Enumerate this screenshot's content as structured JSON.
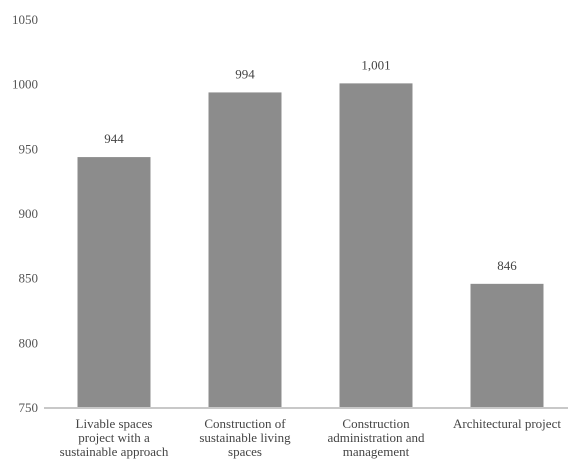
{
  "chart_data": {
    "type": "bar",
    "title": "",
    "xlabel": "",
    "ylabel": "",
    "categories": [
      [
        "Livable spaces",
        "project with a",
        "sustainable approach"
      ],
      [
        "Construction of",
        "sustainable living",
        "spaces"
      ],
      [
        "Construction",
        "administration and",
        "management"
      ],
      [
        "Architectural project"
      ]
    ],
    "values": [
      944,
      994,
      1001,
      846
    ],
    "value_labels": [
      "944",
      "994",
      "1,001",
      "846"
    ],
    "ylim": [
      750,
      1050
    ],
    "yticks": [
      750,
      800,
      850,
      900,
      950,
      1000,
      1050
    ],
    "grid": false,
    "legend": "none",
    "colors": {
      "bar": "#8c8c8c",
      "axis": "#c8c8c8"
    }
  }
}
